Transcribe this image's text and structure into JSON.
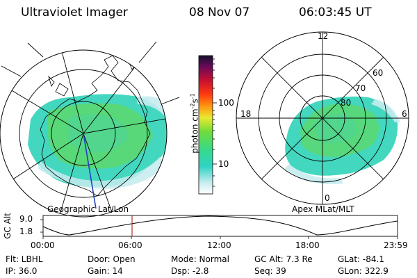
{
  "header": {
    "instrument": "Ultraviolet Imager",
    "date": "08 Nov 07",
    "time": "06:03:45 UT"
  },
  "left_map": {
    "caption": "Geographic Lat/Lon"
  },
  "right_map": {
    "caption": "Apex MLat/MLT",
    "mlt_labels": [
      "12",
      "18",
      "6",
      "0"
    ],
    "mlat_labels": [
      "60",
      "70",
      "80"
    ]
  },
  "colorbar": {
    "unit_label": "photon cm",
    "unit_exp1": "-2",
    "unit_mid": "s",
    "unit_exp2": "-1",
    "ticks": [
      "100",
      "10"
    ],
    "scale": "log"
  },
  "gc_alt_plot": {
    "ylabel": "GC Alt",
    "ymax_label": "9.0",
    "ymin_label": "1.8",
    "time_ticks": [
      "00:00",
      "06:00",
      "12:00",
      "18:00",
      "23:59"
    ],
    "marker_time": "06:03:45",
    "marker_color": "#b03030"
  },
  "info": {
    "flt": "Flt: LBHL",
    "ip": "IP: 36.0",
    "door": "Door: Open",
    "gain": "Gain: 14",
    "mode": "Mode: Normal",
    "dsp": "Dsp:    -2.8",
    "gcalt": "GC Alt: 7.3 Re",
    "seq": "Seq: 39",
    "glat": "GLat: -84.1",
    "glon": "GLon: 322.9"
  }
}
